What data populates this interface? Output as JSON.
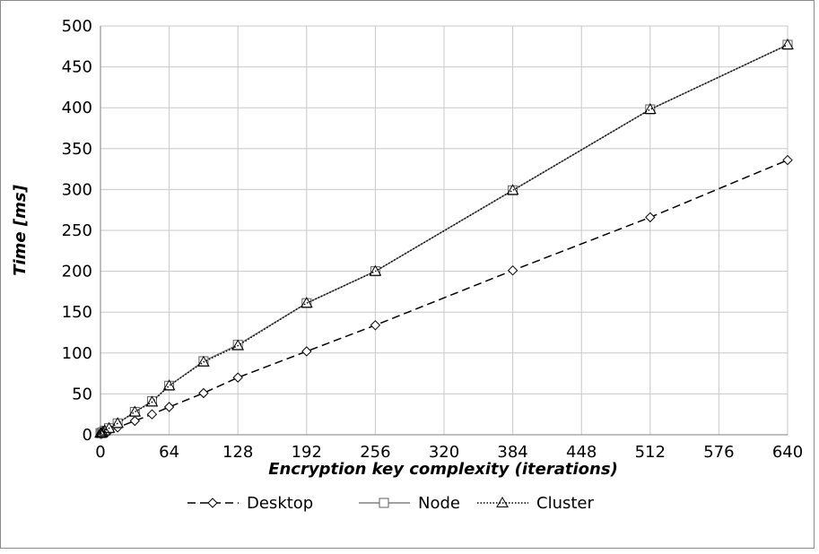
{
  "chart_data": {
    "type": "line",
    "title": "",
    "xlabel": "Encryption key complexity (iterations)",
    "ylabel": "Time [ms]",
    "xlim": [
      0,
      640
    ],
    "ylim": [
      0,
      500
    ],
    "x_ticks": [
      0,
      64,
      128,
      192,
      256,
      320,
      384,
      448,
      512,
      576,
      640
    ],
    "y_ticks": [
      0,
      50,
      100,
      150,
      200,
      250,
      300,
      350,
      400,
      450,
      500
    ],
    "grid": true,
    "legend_position": "bottom",
    "series": [
      {
        "name": "Desktop",
        "marker": "diamond",
        "line_style": "dashed",
        "color": "#000000",
        "points": [
          [
            0,
            1
          ],
          [
            1,
            1
          ],
          [
            2,
            2
          ],
          [
            4,
            3
          ],
          [
            8,
            5
          ],
          [
            16,
            9
          ],
          [
            32,
            17
          ],
          [
            48,
            25
          ],
          [
            64,
            34
          ],
          [
            96,
            51
          ],
          [
            128,
            70
          ],
          [
            192,
            102
          ],
          [
            256,
            134
          ],
          [
            384,
            201
          ],
          [
            512,
            266
          ],
          [
            640,
            336
          ]
        ]
      },
      {
        "name": "Node",
        "marker": "square",
        "line_style": "solid",
        "color": "#808080",
        "points": [
          [
            0,
            2
          ],
          [
            1,
            2
          ],
          [
            2,
            3
          ],
          [
            4,
            5
          ],
          [
            8,
            8
          ],
          [
            16,
            14
          ],
          [
            32,
            28
          ],
          [
            48,
            41
          ],
          [
            64,
            60
          ],
          [
            96,
            90
          ],
          [
            128,
            110
          ],
          [
            192,
            161
          ],
          [
            256,
            200
          ],
          [
            384,
            299
          ],
          [
            512,
            398
          ],
          [
            640,
            477
          ]
        ]
      },
      {
        "name": "Cluster",
        "marker": "triangle",
        "line_style": "dotted",
        "color": "#000000",
        "points": [
          [
            0,
            2
          ],
          [
            1,
            2
          ],
          [
            2,
            3
          ],
          [
            4,
            5
          ],
          [
            8,
            8
          ],
          [
            16,
            14
          ],
          [
            32,
            28
          ],
          [
            48,
            40
          ],
          [
            64,
            60
          ],
          [
            96,
            89
          ],
          [
            128,
            109
          ],
          [
            192,
            161
          ],
          [
            256,
            200
          ],
          [
            384,
            299
          ],
          [
            512,
            398
          ],
          [
            640,
            477
          ]
        ]
      }
    ]
  }
}
